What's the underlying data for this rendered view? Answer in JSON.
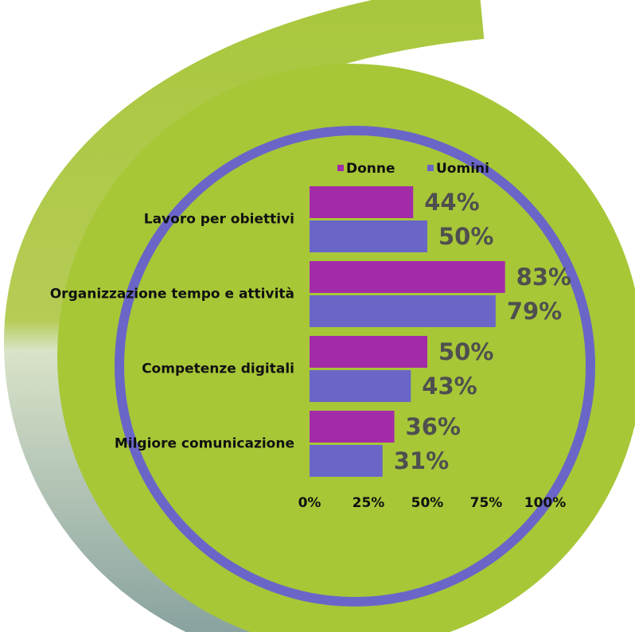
{
  "chart_data": {
    "type": "barh",
    "categories": [
      "Lavoro per obiettivi",
      "Organizzazione tempo e attività",
      "Competenze digitali",
      "Milgiore comunicazione"
    ],
    "series": [
      {
        "name": "Donne",
        "color": "#a42ba8",
        "values": [
          44,
          83,
          50,
          36
        ],
        "value_labels": [
          "44%",
          "83%",
          "50%",
          "36%"
        ]
      },
      {
        "name": "Uomini",
        "color": "#6966c8",
        "values": [
          50,
          79,
          43,
          31
        ],
        "value_labels": [
          "50%",
          "79%",
          "43%",
          "31%"
        ]
      }
    ],
    "xlim": [
      0,
      100
    ],
    "xticks": [
      {
        "value": 0,
        "label": "0%"
      },
      {
        "value": 25,
        "label": "25%"
      },
      {
        "value": 50,
        "label": "50%"
      },
      {
        "value": 75,
        "label": "75%"
      },
      {
        "value": 100,
        "label": "100%"
      }
    ],
    "legend": "top"
  }
}
